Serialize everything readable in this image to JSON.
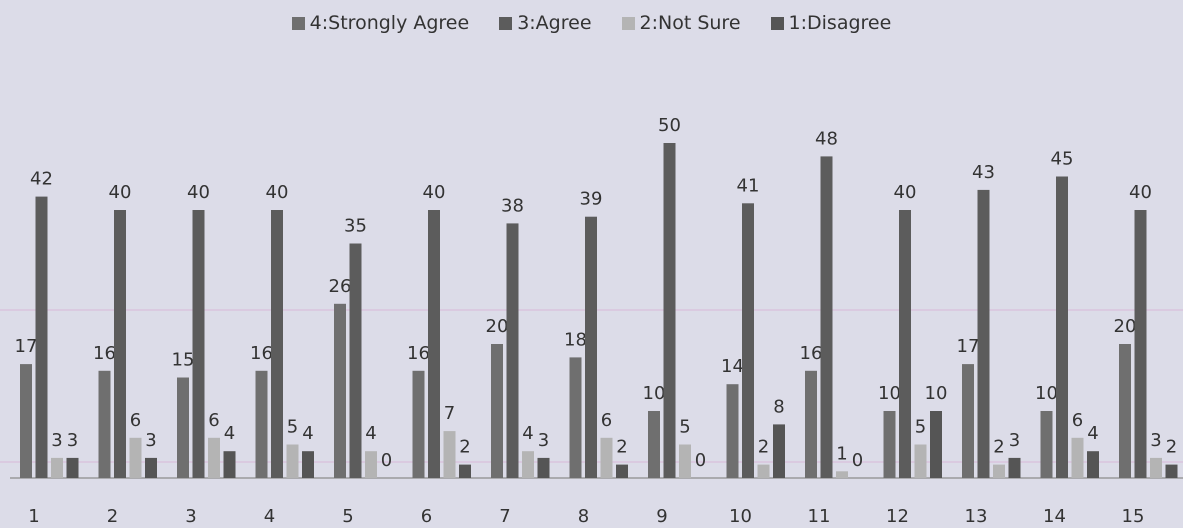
{
  "chart_data": {
    "type": "bar",
    "categories": [
      "1",
      "2",
      "3",
      "4",
      "5",
      "6",
      "7",
      "8",
      "9",
      "10",
      "11",
      "12",
      "13",
      "14",
      "15"
    ],
    "series": [
      {
        "name": "4:Strongly Agree",
        "values": [
          17,
          16,
          15,
          16,
          26,
          16,
          20,
          18,
          10,
          14,
          16,
          10,
          17,
          10,
          20
        ]
      },
      {
        "name": "3:Agree",
        "values": [
          42,
          40,
          40,
          40,
          35,
          40,
          38,
          39,
          50,
          41,
          48,
          40,
          43,
          45,
          40
        ]
      },
      {
        "name": "2:Not Sure",
        "values": [
          3,
          6,
          6,
          5,
          4,
          7,
          4,
          6,
          5,
          2,
          1,
          5,
          2,
          6,
          3
        ]
      },
      {
        "name": "1:Disagree",
        "values": [
          3,
          3,
          4,
          4,
          0,
          2,
          3,
          2,
          0,
          8,
          0,
          10,
          3,
          4,
          2
        ]
      }
    ],
    "colors": [
      "#6f6f6f",
      "#5c5c5c",
      "#b4b4b4",
      "#555555"
    ],
    "legend_position": "top",
    "grid": false,
    "ylim": [
      0,
      50
    ]
  }
}
